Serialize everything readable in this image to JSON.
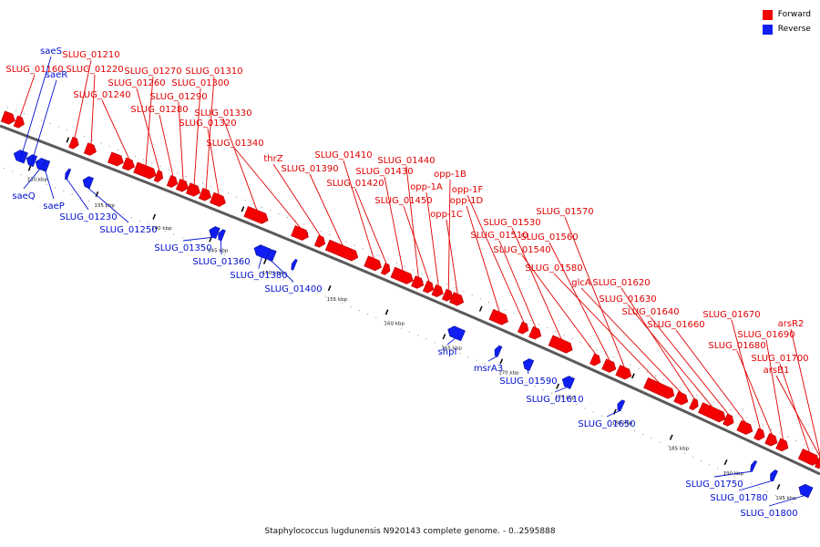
{
  "legend": {
    "forward_label": "Forward",
    "reverse_label": "Reverse",
    "forward_color": "#f40000",
    "reverse_color": "#0f1ef2"
  },
  "caption": "Staphylococcus lugdunensis N920143 complete genome. - 0..2595888",
  "colors": {
    "forward": "#f40000",
    "reverse": "#0f1ef2",
    "backbone": "#5a5a5a",
    "label_forward": "#e00000",
    "label_reverse": "#0010d0"
  },
  "ticks": [
    "130 kbp",
    "135 kbp",
    "140 kbp",
    "145 kbp",
    "150 kbp",
    "155 kbp",
    "160 kbp",
    "165 kbp",
    "170 kbp",
    "175 kbp",
    "180 kbp",
    "185 kbp",
    "190 kbp",
    "195 kbp"
  ],
  "forward_genes": [
    "SLUG_01160",
    "SLUG_01210",
    "SLUG_01220",
    "SLUG_01240",
    "SLUG_01270",
    "SLUG_01260",
    "SLUG_01280",
    "SLUG_01290",
    "SLUG_01300",
    "SLUG_01310",
    "SLUG_01320",
    "SLUG_01330",
    "SLUG_01340",
    "thrZ",
    "SLUG_01390",
    "SLUG_01410",
    "SLUG_01420",
    "SLUG_01430",
    "SLUG_01440",
    "SLUG_01450",
    "opp-1A",
    "opp-1B",
    "opp-1C",
    "opp-1D",
    "opp-1F",
    "SLUG_01510",
    "SLUG_01530",
    "SLUG_01540",
    "SLUG_01560",
    "SLUG_01570",
    "SLUG_01580",
    "glcA",
    "SLUG_01620",
    "SLUG_01630",
    "SLUG_01640",
    "SLUG_01660",
    "SLUG_01670",
    "SLUG_01680",
    "SLUG_01690",
    "SLUG_01700",
    "arsR2",
    "arsB1"
  ],
  "reverse_genes": [
    "saeS",
    "saeR",
    "saeQ",
    "saeP",
    "SLUG_01230",
    "SLUG_01250",
    "SLUG_01350",
    "SLUG_01360",
    "SLUG_01380",
    "SLUG_01400",
    "shpI",
    "msrA3",
    "SLUG_01590",
    "SLUG_01610",
    "SLUG_01650",
    "SLUG_01750",
    "SLUG_01780",
    "SLUG_01800"
  ]
}
